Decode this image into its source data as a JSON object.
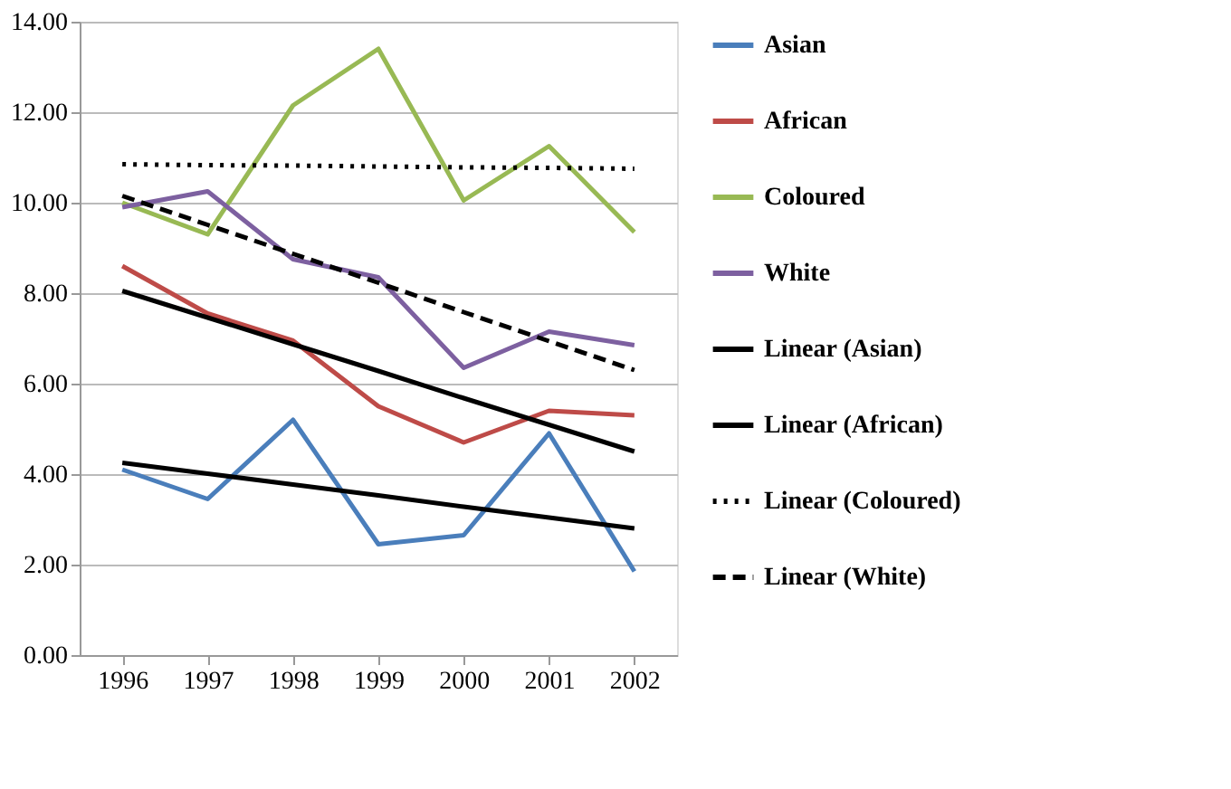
{
  "chart_data": {
    "type": "line",
    "categories": [
      "1996",
      "1997",
      "1998",
      "1999",
      "2000",
      "2001",
      "2002"
    ],
    "ylim": [
      0,
      14
    ],
    "yticks": [
      {
        "value": 0,
        "label": "0.00"
      },
      {
        "value": 2,
        "label": "2.00"
      },
      {
        "value": 4,
        "label": "4.00"
      },
      {
        "value": 6,
        "label": "6.00"
      },
      {
        "value": 8,
        "label": "8.00"
      },
      {
        "value": 10,
        "label": "10.00"
      },
      {
        "value": 12,
        "label": "12.00"
      },
      {
        "value": 14,
        "label": "14.00"
      }
    ],
    "grid": "y",
    "legend": "right",
    "marker": "none",
    "series": [
      {
        "name": "Asian",
        "color": "#4a7ebb",
        "line_style": "solid",
        "values": [
          4.1,
          3.45,
          5.2,
          2.45,
          2.65,
          4.9,
          1.85
        ]
      },
      {
        "name": "African",
        "color": "#be4b48",
        "line_style": "solid",
        "values": [
          8.6,
          7.55,
          6.95,
          5.5,
          4.7,
          5.4,
          5.3
        ]
      },
      {
        "name": "Coloured",
        "color": "#98b954",
        "line_style": "solid",
        "values": [
          10.0,
          9.3,
          12.15,
          13.4,
          10.05,
          11.25,
          9.35
        ]
      },
      {
        "name": "White",
        "color": "#7d60a0",
        "line_style": "solid",
        "values": [
          9.9,
          10.25,
          8.75,
          8.35,
          6.35,
          7.15,
          6.85
        ]
      },
      {
        "name": "Linear (Asian)",
        "type": "line",
        "color": "#000000",
        "line_style": "solid",
        "values": [
          4.25,
          4.01,
          3.77,
          3.53,
          3.28,
          3.04,
          2.8
        ]
      },
      {
        "name": "Linear (African)",
        "type": "line",
        "color": "#000000",
        "line_style": "solid",
        "values": [
          8.05,
          7.46,
          6.87,
          6.28,
          5.68,
          5.09,
          4.5
        ]
      },
      {
        "name": "Linear (Coloured)",
        "type": "line",
        "color": "#000000",
        "line_style": "dotted",
        "values": [
          10.85,
          10.83,
          10.82,
          10.8,
          10.78,
          10.77,
          10.75
        ]
      },
      {
        "name": "Linear (White)",
        "type": "line",
        "color": "#000000",
        "line_style": "dashed",
        "values": [
          10.15,
          9.51,
          8.87,
          8.23,
          7.58,
          6.94,
          6.3
        ]
      }
    ]
  }
}
